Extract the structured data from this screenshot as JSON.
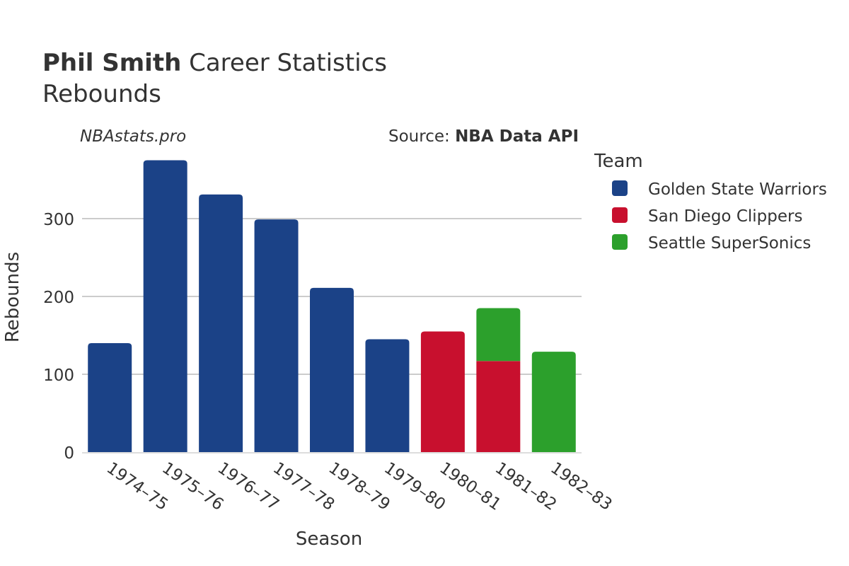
{
  "title": {
    "player": "Phil Smith",
    "rest": " Career Statistics",
    "subtitle": "Rebounds"
  },
  "watermark": "NBAstats.pro",
  "source": {
    "prefix": "Source: ",
    "name": "NBA Data API"
  },
  "legend": {
    "title": "Team",
    "items": [
      {
        "label": "Golden State Warriors",
        "color": "#1b4287"
      },
      {
        "label": "San Diego Clippers",
        "color": "#c8102e"
      },
      {
        "label": "Seattle SuperSonics",
        "color": "#2ca02c"
      }
    ]
  },
  "chart_data": {
    "type": "bar",
    "stacked": true,
    "xlabel": "Season",
    "ylabel": "Rebounds",
    "categories": [
      "1974–75",
      "1975–76",
      "1976–77",
      "1977–78",
      "1978–79",
      "1979–80",
      "1980–81",
      "1981–82",
      "1982–83"
    ],
    "ylim": [
      0,
      390
    ],
    "yticks": [
      0,
      100,
      200,
      300
    ],
    "grid": true,
    "legend_position": "right",
    "series": [
      {
        "name": "Golden State Warriors",
        "color": "#1b4287",
        "values": [
          140,
          375,
          331,
          299,
          211,
          145,
          0,
          0,
          0
        ]
      },
      {
        "name": "San Diego Clippers",
        "color": "#c8102e",
        "values": [
          0,
          0,
          0,
          0,
          0,
          0,
          155,
          117,
          0
        ]
      },
      {
        "name": "Seattle SuperSonics",
        "color": "#2ca02c",
        "values": [
          0,
          0,
          0,
          0,
          0,
          0,
          0,
          68,
          129
        ]
      }
    ]
  }
}
